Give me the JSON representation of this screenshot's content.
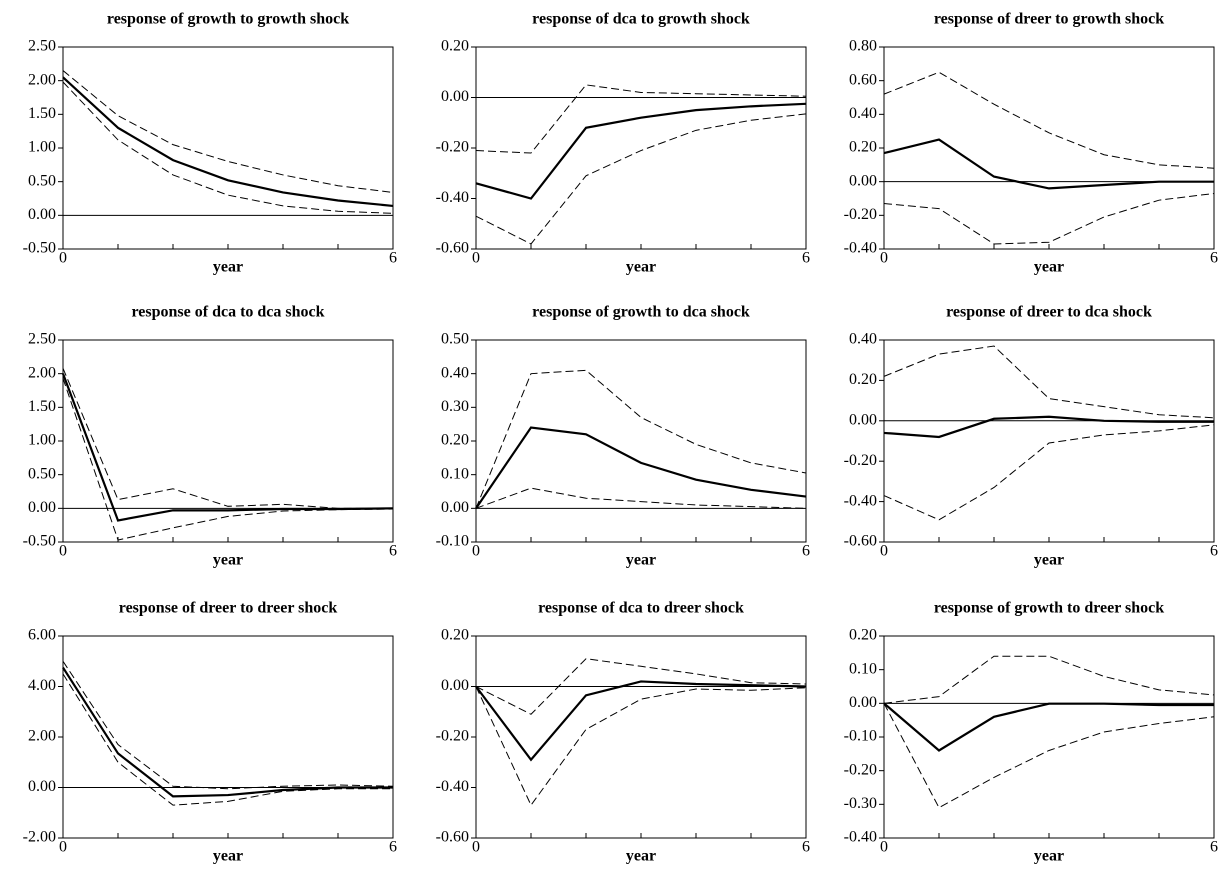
{
  "chart_data": [
    {
      "type": "line",
      "title": "response of growth to growth shock",
      "xlabel": "year",
      "x": [
        0,
        1,
        2,
        3,
        4,
        5,
        6
      ],
      "xlim": [
        0,
        6
      ],
      "xticks": [
        0,
        6
      ],
      "ylim": [
        -0.5,
        2.5
      ],
      "yticks": [
        {
          "value": -0.5,
          "label": "-0.50"
        },
        {
          "value": 0,
          "label": "0.00"
        },
        {
          "value": 0.5,
          "label": "0.50"
        },
        {
          "value": 1,
          "label": "1.00"
        },
        {
          "value": 1.5,
          "label": "1.50"
        },
        {
          "value": 2,
          "label": "2.00"
        },
        {
          "value": 2.5,
          "label": "2.50"
        }
      ],
      "series": [
        {
          "color": "#000000",
          "style": "solid",
          "values": [
            2.05,
            1.3,
            0.82,
            0.52,
            0.34,
            0.22,
            0.14
          ]
        },
        {
          "color": "#000000",
          "style": "dashed",
          "values": [
            2.15,
            1.48,
            1.05,
            0.8,
            0.6,
            0.44,
            0.34
          ]
        },
        {
          "color": "#000000",
          "style": "dashed",
          "values": [
            1.98,
            1.12,
            0.6,
            0.3,
            0.14,
            0.06,
            0.03
          ]
        }
      ]
    },
    {
      "type": "line",
      "title": "response of dca to growth shock",
      "xlabel": "year",
      "x": [
        0,
        1,
        2,
        3,
        4,
        5,
        6
      ],
      "xlim": [
        0,
        6
      ],
      "xticks": [
        0,
        6
      ],
      "ylim": [
        -0.6,
        0.2
      ],
      "yticks": [
        {
          "value": -0.6,
          "label": "-0.60"
        },
        {
          "value": -0.4,
          "label": "-0.40"
        },
        {
          "value": -0.2,
          "label": "-0.20"
        },
        {
          "value": 0,
          "label": "0.00"
        },
        {
          "value": 0.2,
          "label": "0.20"
        }
      ],
      "series": [
        {
          "color": "#000000",
          "style": "solid",
          "values": [
            -0.34,
            -0.4,
            -0.12,
            -0.08,
            -0.05,
            -0.035,
            -0.025
          ]
        },
        {
          "color": "#000000",
          "style": "dashed",
          "values": [
            -0.21,
            -0.22,
            0.05,
            0.02,
            0.015,
            0.01,
            0.005
          ]
        },
        {
          "color": "#000000",
          "style": "dashed",
          "values": [
            -0.47,
            -0.58,
            -0.31,
            -0.21,
            -0.13,
            -0.09,
            -0.065
          ]
        }
      ]
    },
    {
      "type": "line",
      "title": "response of dreer to growth shock",
      "xlabel": "year",
      "x": [
        0,
        1,
        2,
        3,
        4,
        5,
        6
      ],
      "xlim": [
        0,
        6
      ],
      "xticks": [
        0,
        6
      ],
      "ylim": [
        -0.4,
        0.8
      ],
      "yticks": [
        {
          "value": -0.4,
          "label": "-0.40"
        },
        {
          "value": -0.2,
          "label": "-0.20"
        },
        {
          "value": 0,
          "label": "0.00"
        },
        {
          "value": 0.2,
          "label": "0.20"
        },
        {
          "value": 0.4,
          "label": "0.40"
        },
        {
          "value": 0.6,
          "label": "0.60"
        },
        {
          "value": 0.8,
          "label": "0.80"
        }
      ],
      "series": [
        {
          "color": "#000000",
          "style": "solid",
          "values": [
            0.17,
            0.25,
            0.03,
            -0.04,
            -0.02,
            0.0,
            0.0
          ]
        },
        {
          "color": "#000000",
          "style": "dashed",
          "values": [
            0.52,
            0.65,
            0.46,
            0.29,
            0.16,
            0.1,
            0.08
          ]
        },
        {
          "color": "#000000",
          "style": "dashed",
          "values": [
            -0.13,
            -0.16,
            -0.37,
            -0.36,
            -0.21,
            -0.11,
            -0.07
          ]
        }
      ]
    },
    {
      "type": "line",
      "title": "response of dca to dca shock",
      "xlabel": "year",
      "x": [
        0,
        1,
        2,
        3,
        4,
        5,
        6
      ],
      "xlim": [
        0,
        6
      ],
      "xticks": [
        0,
        6
      ],
      "ylim": [
        -0.5,
        2.5
      ],
      "yticks": [
        {
          "value": -0.5,
          "label": "-0.50"
        },
        {
          "value": 0,
          "label": "0.00"
        },
        {
          "value": 0.5,
          "label": "0.50"
        },
        {
          "value": 1,
          "label": "1.00"
        },
        {
          "value": 1.5,
          "label": "1.50"
        },
        {
          "value": 2,
          "label": "2.00"
        },
        {
          "value": 2.5,
          "label": "2.50"
        }
      ],
      "series": [
        {
          "color": "#000000",
          "style": "solid",
          "values": [
            2.0,
            -0.18,
            -0.03,
            -0.03,
            -0.01,
            -0.01,
            0.0
          ]
        },
        {
          "color": "#000000",
          "style": "dashed",
          "values": [
            2.08,
            0.13,
            0.29,
            0.03,
            0.06,
            0.0,
            0.0
          ]
        },
        {
          "color": "#000000",
          "style": "dashed",
          "values": [
            1.93,
            -0.47,
            -0.29,
            -0.12,
            -0.04,
            -0.02,
            -0.01
          ]
        }
      ]
    },
    {
      "type": "line",
      "title": "response of growth to dca shock",
      "xlabel": "year",
      "x": [
        0,
        1,
        2,
        3,
        4,
        5,
        6
      ],
      "xlim": [
        0,
        6
      ],
      "xticks": [
        0,
        6
      ],
      "ylim": [
        -0.1,
        0.5
      ],
      "yticks": [
        {
          "value": -0.1,
          "label": "-0.10"
        },
        {
          "value": 0,
          "label": "0.00"
        },
        {
          "value": 0.1,
          "label": "0.10"
        },
        {
          "value": 0.2,
          "label": "0.20"
        },
        {
          "value": 0.3,
          "label": "0.30"
        },
        {
          "value": 0.4,
          "label": "0.40"
        },
        {
          "value": 0.5,
          "label": "0.50"
        }
      ],
      "series": [
        {
          "color": "#000000",
          "style": "solid",
          "values": [
            0,
            0.24,
            0.22,
            0.135,
            0.085,
            0.055,
            0.035
          ]
        },
        {
          "color": "#000000",
          "style": "dashed",
          "values": [
            0,
            0.4,
            0.41,
            0.27,
            0.19,
            0.135,
            0.105
          ]
        },
        {
          "color": "#000000",
          "style": "dashed",
          "values": [
            0,
            0.06,
            0.03,
            0.02,
            0.01,
            0.005,
            0.0
          ]
        }
      ]
    },
    {
      "type": "line",
      "title": "response of dreer to dca shock",
      "xlabel": "year",
      "x": [
        0,
        1,
        2,
        3,
        4,
        5,
        6
      ],
      "xlim": [
        0,
        6
      ],
      "xticks": [
        0,
        6
      ],
      "ylim": [
        -0.6,
        0.4
      ],
      "yticks": [
        {
          "value": -0.6,
          "label": "-0.60"
        },
        {
          "value": -0.4,
          "label": "-0.40"
        },
        {
          "value": -0.2,
          "label": "-0.20"
        },
        {
          "value": 0,
          "label": "0.00"
        },
        {
          "value": 0.2,
          "label": "0.20"
        },
        {
          "value": 0.4,
          "label": "0.40"
        }
      ],
      "series": [
        {
          "color": "#000000",
          "style": "solid",
          "values": [
            -0.06,
            -0.08,
            0.01,
            0.02,
            0.0,
            -0.005,
            -0.005
          ]
        },
        {
          "color": "#000000",
          "style": "dashed",
          "values": [
            0.22,
            0.33,
            0.37,
            0.11,
            0.07,
            0.03,
            0.015
          ]
        },
        {
          "color": "#000000",
          "style": "dashed",
          "values": [
            -0.37,
            -0.49,
            -0.33,
            -0.11,
            -0.07,
            -0.05,
            -0.02
          ]
        }
      ]
    },
    {
      "type": "line",
      "title": "response of dreer to dreer shock",
      "xlabel": "year",
      "x": [
        0,
        1,
        2,
        3,
        4,
        5,
        6
      ],
      "xlim": [
        0,
        6
      ],
      "xticks": [
        0,
        6
      ],
      "ylim": [
        -2,
        6
      ],
      "yticks": [
        {
          "value": -2,
          "label": "-2.00"
        },
        {
          "value": 0,
          "label": "0.00"
        },
        {
          "value": 2,
          "label": "2.00"
        },
        {
          "value": 4,
          "label": "4.00"
        },
        {
          "value": 6,
          "label": "6.00"
        }
      ],
      "series": [
        {
          "color": "#000000",
          "style": "solid",
          "values": [
            4.75,
            1.35,
            -0.35,
            -0.3,
            -0.1,
            0.0,
            0.0
          ]
        },
        {
          "color": "#000000",
          "style": "dashed",
          "values": [
            5.0,
            1.7,
            0.05,
            -0.05,
            0.05,
            0.1,
            0.05
          ]
        },
        {
          "color": "#000000",
          "style": "dashed",
          "values": [
            4.5,
            1.0,
            -0.7,
            -0.55,
            -0.15,
            -0.05,
            -0.05
          ]
        }
      ]
    },
    {
      "type": "line",
      "title": "response of dca to dreer shock",
      "xlabel": "year",
      "x": [
        0,
        1,
        2,
        3,
        4,
        5,
        6
      ],
      "xlim": [
        0,
        6
      ],
      "xticks": [
        0,
        6
      ],
      "ylim": [
        -0.6,
        0.2
      ],
      "yticks": [
        {
          "value": -0.6,
          "label": "-0.60"
        },
        {
          "value": -0.4,
          "label": "-0.40"
        },
        {
          "value": -0.2,
          "label": "-0.20"
        },
        {
          "value": 0,
          "label": "0.00"
        },
        {
          "value": 0.2,
          "label": "0.20"
        }
      ],
      "series": [
        {
          "color": "#000000",
          "style": "solid",
          "values": [
            0,
            -0.29,
            -0.035,
            0.02,
            0.01,
            0.005,
            0.0
          ]
        },
        {
          "color": "#000000",
          "style": "dashed",
          "values": [
            0,
            -0.11,
            0.11,
            0.08,
            0.05,
            0.015,
            0.01
          ]
        },
        {
          "color": "#000000",
          "style": "dashed",
          "values": [
            0,
            -0.47,
            -0.17,
            -0.05,
            -0.01,
            -0.015,
            -0.005
          ]
        }
      ]
    },
    {
      "type": "line",
      "title": "response of growth to dreer shock",
      "xlabel": "year",
      "x": [
        0,
        1,
        2,
        3,
        4,
        5,
        6
      ],
      "xlim": [
        0,
        6
      ],
      "xticks": [
        0,
        6
      ],
      "ylim": [
        -0.4,
        0.2
      ],
      "yticks": [
        {
          "value": -0.4,
          "label": "-0.40"
        },
        {
          "value": -0.3,
          "label": "-0.30"
        },
        {
          "value": -0.2,
          "label": "-0.20"
        },
        {
          "value": -0.1,
          "label": "-0.10"
        },
        {
          "value": 0,
          "label": "0.00"
        },
        {
          "value": 0.1,
          "label": "0.10"
        },
        {
          "value": 0.2,
          "label": "0.20"
        }
      ],
      "series": [
        {
          "color": "#000000",
          "style": "solid",
          "values": [
            0,
            -0.14,
            -0.04,
            -0.001,
            -0.001,
            -0.005,
            -0.005
          ]
        },
        {
          "color": "#000000",
          "style": "dashed",
          "values": [
            0,
            0.02,
            0.14,
            0.14,
            0.08,
            0.04,
            0.025
          ]
        },
        {
          "color": "#000000",
          "style": "dashed",
          "values": [
            0,
            -0.31,
            -0.22,
            -0.14,
            -0.085,
            -0.06,
            -0.04
          ]
        }
      ]
    }
  ]
}
